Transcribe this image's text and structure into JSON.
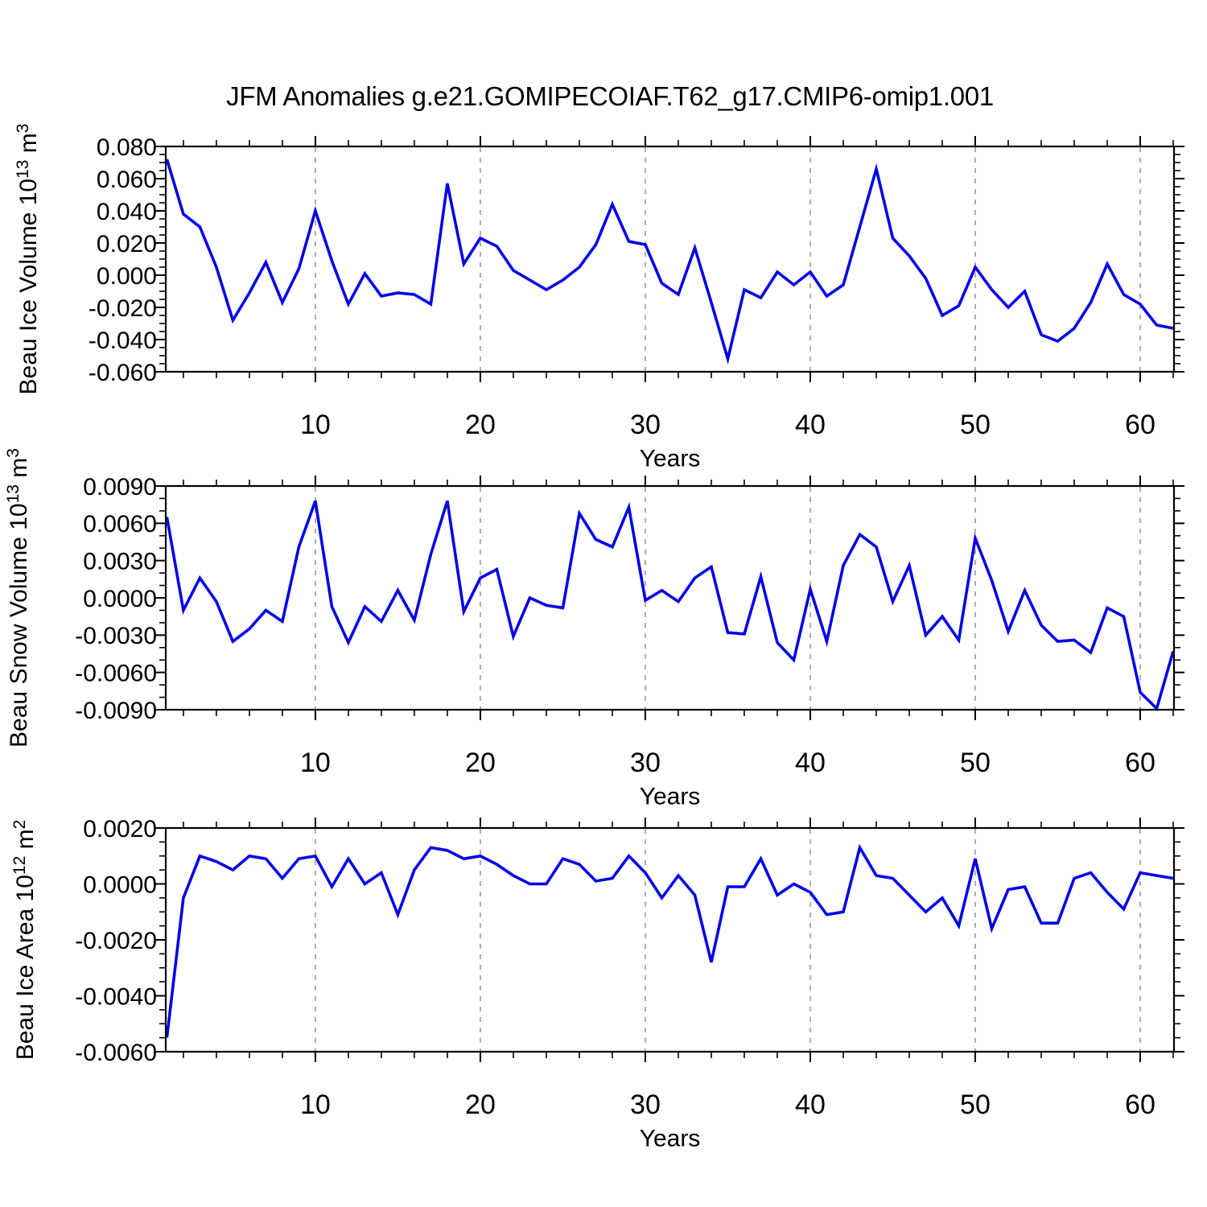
{
  "title": "JFM Anomalies g.e21.GOMIPECOIAF.T62_g17.CMIP6-omip1.001",
  "accent_colors": {
    "line": "#0202e8",
    "grid": "#999999",
    "frame": "#000000"
  },
  "chart_data": [
    {
      "type": "line",
      "name": "beau-ice-volume",
      "ylabel_parts": [
        {
          "t": "Beau Ice Volume 10"
        },
        {
          "t": "13",
          "sup": true
        },
        {
          "t": " m"
        },
        {
          "t": "3",
          "sup": true
        }
      ],
      "xlabel": "Years",
      "x_range": [
        1,
        62
      ],
      "xlim": [
        0.93,
        62.05
      ],
      "ylim": [
        -0.06,
        0.08
      ],
      "x_major_ticks": [
        10,
        20,
        30,
        40,
        50,
        60
      ],
      "x_minor_step": 2,
      "y_major_ticks": [
        {
          "v": 0.08,
          "label": "0.080"
        },
        {
          "v": 0.06,
          "label": "0.060"
        },
        {
          "v": 0.04,
          "label": "0.040"
        },
        {
          "v": 0.02,
          "label": "0.020"
        },
        {
          "v": 0.0,
          "label": "0.000"
        },
        {
          "v": -0.02,
          "label": "-0.020"
        },
        {
          "v": -0.04,
          "label": "-0.040"
        },
        {
          "v": -0.06,
          "label": "-0.060"
        }
      ],
      "y_minor_step": 0.005,
      "grid_x": true,
      "values": [
        0.072,
        0.038,
        0.03,
        0.005,
        -0.028,
        -0.011,
        0.008,
        -0.017,
        0.004,
        0.04,
        0.009,
        -0.018,
        0.001,
        -0.013,
        -0.011,
        -0.012,
        -0.018,
        0.057,
        0.007,
        0.023,
        0.018,
        0.003,
        -0.003,
        -0.009,
        -0.003,
        0.005,
        0.019,
        0.044,
        0.021,
        0.019,
        -0.005,
        -0.012,
        0.017,
        -0.017,
        -0.052,
        -0.009,
        -0.014,
        0.002,
        -0.006,
        0.002,
        -0.013,
        -0.006,
        0.03,
        0.066,
        0.023,
        0.012,
        -0.002,
        -0.025,
        -0.019,
        0.005,
        -0.009,
        -0.02,
        -0.01,
        -0.037,
        -0.041,
        -0.033,
        -0.017,
        0.007,
        -0.012,
        -0.018,
        -0.031,
        -0.033
      ]
    },
    {
      "type": "line",
      "name": "beau-snow-volume",
      "ylabel_parts": [
        {
          "t": "Beau Snow Volume 10"
        },
        {
          "t": "13",
          "sup": true
        },
        {
          "t": " m"
        },
        {
          "t": "3",
          "sup": true
        }
      ],
      "xlabel": "Years",
      "x_range": [
        1,
        62
      ],
      "xlim": [
        0.93,
        62.05
      ],
      "ylim": [
        -0.009,
        0.009
      ],
      "x_major_ticks": [
        10,
        20,
        30,
        40,
        50,
        60
      ],
      "x_minor_step": 2,
      "y_major_ticks": [
        {
          "v": 0.009,
          "label": "0.0090"
        },
        {
          "v": 0.006,
          "label": "0.0060"
        },
        {
          "v": 0.003,
          "label": "0.0030"
        },
        {
          "v": 0.0,
          "label": "0.0000"
        },
        {
          "v": -0.003,
          "label": "-0.0030"
        },
        {
          "v": -0.006,
          "label": "-0.0060"
        },
        {
          "v": -0.009,
          "label": "-0.0090"
        }
      ],
      "y_minor_step": 0.001,
      "grid_x": true,
      "values": [
        0.0065,
        -0.001,
        0.0016,
        -0.0003,
        -0.0035,
        -0.0025,
        -0.001,
        -0.0019,
        0.0041,
        0.0078,
        -0.0007,
        -0.0036,
        -0.0007,
        -0.0019,
        0.0006,
        -0.0018,
        0.0035,
        0.0078,
        -0.0011,
        0.0016,
        0.0023,
        -0.0031,
        0.0,
        -0.0006,
        -0.0008,
        0.0068,
        0.0047,
        0.0041,
        0.0073,
        -0.0002,
        0.0006,
        -0.0003,
        0.0016,
        0.0025,
        -0.0028,
        -0.0029,
        0.0017,
        -0.0036,
        -0.005,
        0.0007,
        -0.0035,
        0.0026,
        0.0051,
        0.0041,
        -0.0003,
        0.0026,
        -0.003,
        -0.0015,
        -0.0034,
        0.0048,
        0.0014,
        -0.0027,
        0.0006,
        -0.0022,
        -0.0035,
        -0.0034,
        -0.0044,
        -0.0008,
        -0.0015,
        -0.0076,
        -0.0089,
        -0.0043
      ]
    },
    {
      "type": "line",
      "name": "beau-ice-area",
      "ylabel_parts": [
        {
          "t": "Beau Ice Area 10"
        },
        {
          "t": "12",
          "sup": true
        },
        {
          "t": " m"
        },
        {
          "t": "2",
          "sup": true
        }
      ],
      "xlabel": "Years",
      "x_range": [
        1,
        62
      ],
      "xlim": [
        0.93,
        62.05
      ],
      "ylim": [
        -0.006,
        0.002
      ],
      "x_major_ticks": [
        10,
        20,
        30,
        40,
        50,
        60
      ],
      "x_minor_step": 2,
      "y_major_ticks": [
        {
          "v": 0.002,
          "label": "0.0020"
        },
        {
          "v": 0.0,
          "label": "0.0000"
        },
        {
          "v": -0.002,
          "label": "-0.0020"
        },
        {
          "v": -0.004,
          "label": "-0.0040"
        },
        {
          "v": -0.006,
          "label": "-0.0060"
        }
      ],
      "y_minor_step": 0.0005,
      "grid_x": true,
      "values": [
        -0.0055,
        -0.0005,
        0.001,
        0.0008,
        0.0005,
        0.001,
        0.0009,
        0.0002,
        0.0009,
        0.001,
        -0.0001,
        0.0009,
        0.0,
        0.0004,
        -0.0011,
        0.0005,
        0.0013,
        0.0012,
        0.0009,
        0.001,
        0.0007,
        0.0003,
        0.0,
        0.0,
        0.0009,
        0.0007,
        0.0001,
        0.0002,
        0.001,
        0.0004,
        -0.0005,
        0.0003,
        -0.0004,
        -0.0028,
        -0.0001,
        -0.0001,
        0.0009,
        -0.0004,
        0.0,
        -0.0003,
        -0.0011,
        -0.001,
        0.0013,
        0.0003,
        0.0002,
        -0.0004,
        -0.001,
        -0.0005,
        -0.0015,
        0.0009,
        -0.0016,
        -0.0002,
        -0.0001,
        -0.0014,
        -0.0014,
        0.0002,
        0.0004,
        -0.0003,
        -0.0009,
        0.0004,
        0.0003,
        0.0002
      ]
    }
  ]
}
